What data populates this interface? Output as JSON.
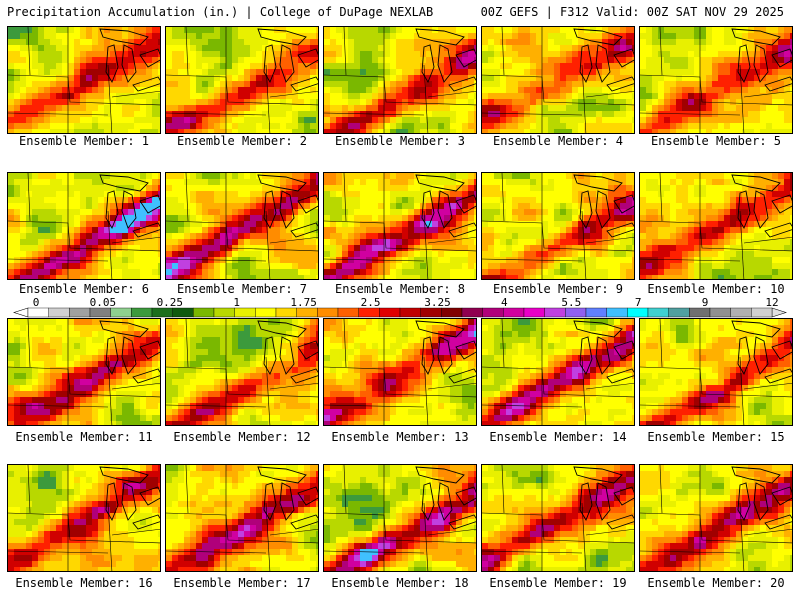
{
  "header": {
    "left": "Precipitation Accumulation (in.) | College of DuPage NEXLAB",
    "right": "00Z GEFS | F312 Valid: 00Z SAT NOV 29 2025"
  },
  "panels": [
    {
      "label": "Ensemble Member: 1",
      "intensity": 0.35
    },
    {
      "label": "Ensemble Member: 2",
      "intensity": 0.45
    },
    {
      "label": "Ensemble Member: 3",
      "intensity": 0.55
    },
    {
      "label": "Ensemble Member: 4",
      "intensity": 0.4
    },
    {
      "label": "Ensemble Member: 5",
      "intensity": 0.5
    },
    {
      "label": "Ensemble Member: 6",
      "intensity": 0.62
    },
    {
      "label": "Ensemble Member: 7",
      "intensity": 0.58
    },
    {
      "label": "Ensemble Member: 8",
      "intensity": 0.6
    },
    {
      "label": "Ensemble Member: 9",
      "intensity": 0.45
    },
    {
      "label": "Ensemble Member: 10",
      "intensity": 0.48
    },
    {
      "label": "Ensemble Member: 11",
      "intensity": 0.4
    },
    {
      "label": "Ensemble Member: 12",
      "intensity": 0.38
    },
    {
      "label": "Ensemble Member: 13",
      "intensity": 0.5
    },
    {
      "label": "Ensemble Member: 14",
      "intensity": 0.62
    },
    {
      "label": "Ensemble Member: 15",
      "intensity": 0.52
    },
    {
      "label": "Ensemble Member: 16",
      "intensity": 0.48
    },
    {
      "label": "Ensemble Member: 17",
      "intensity": 0.55
    },
    {
      "label": "Ensemble Member: 18",
      "intensity": 0.66
    },
    {
      "label": "Ensemble Member: 19",
      "intensity": 0.45
    },
    {
      "label": "Ensemble Member: 20",
      "intensity": 0.5
    }
  ],
  "colorbar": {
    "tick_labels": [
      "0",
      "0.05",
      "0.25",
      "1",
      "1.75",
      "2.5",
      "3.25",
      "4",
      "5.5",
      "7",
      "9",
      "12"
    ],
    "colors": [
      "#ffffff",
      "#d0d0d0",
      "#a0a0a0",
      "#808080",
      "#8fd08f",
      "#3c9a3c",
      "#1d6f1d",
      "#0f5a0f",
      "#7ab800",
      "#b8d800",
      "#e8f000",
      "#ffff00",
      "#ffd800",
      "#ffb000",
      "#ff8c00",
      "#ff6000",
      "#ff2000",
      "#e00000",
      "#c00000",
      "#a00000",
      "#800000",
      "#900050",
      "#b0007a",
      "#d000a0",
      "#e800c8",
      "#c040e0",
      "#9060f0",
      "#6080ff",
      "#40c0ff",
      "#00ffff",
      "#40d0d0",
      "#50a0a0",
      "#707070",
      "#909090",
      "#b0b0b0",
      "#d0d0d0"
    ]
  }
}
